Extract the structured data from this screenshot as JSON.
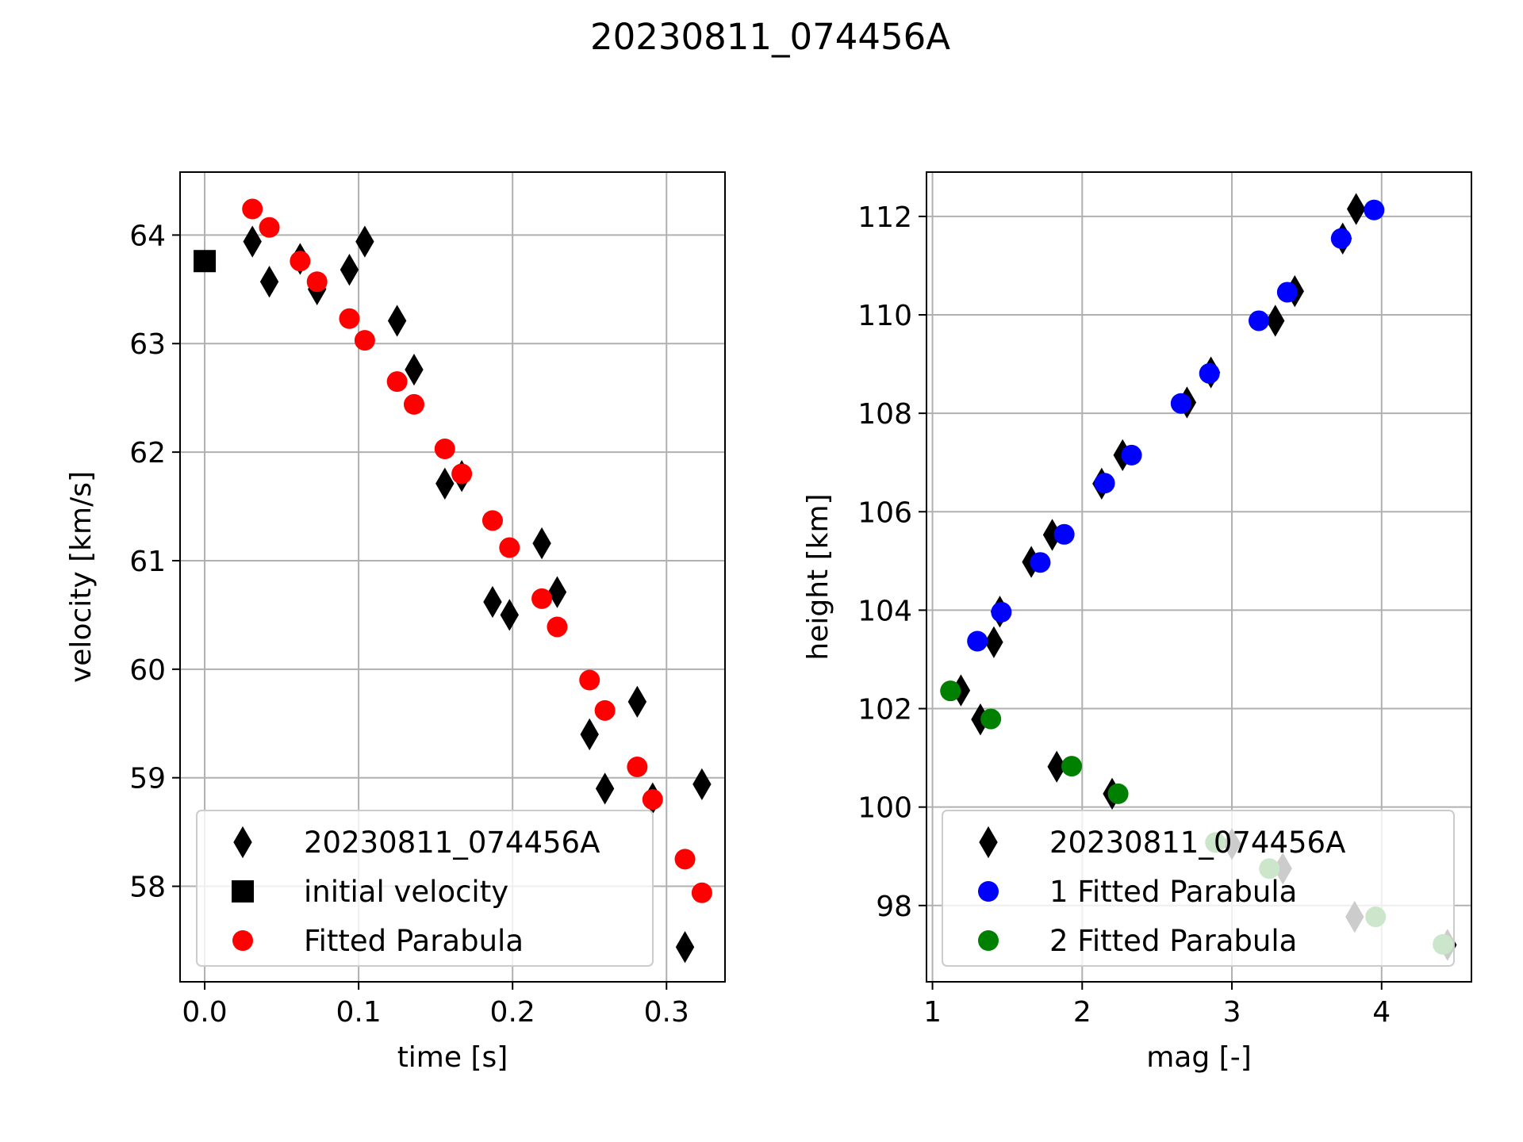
{
  "figure": {
    "title": "20230811_074456A"
  },
  "chart_data": [
    {
      "type": "scatter",
      "xlabel": "time [s]",
      "ylabel": "velocity [km/s]",
      "xlim": [
        -0.016,
        0.338
      ],
      "ylim": [
        57.12,
        64.58
      ],
      "xticks": [
        0.0,
        0.1,
        0.2,
        0.3
      ],
      "xtick_labels": [
        "0.0",
        "0.1",
        "0.2",
        "0.3"
      ],
      "yticks": [
        58,
        59,
        60,
        61,
        62,
        63,
        64
      ],
      "ytick_labels": [
        "58",
        "59",
        "60",
        "61",
        "62",
        "63",
        "64"
      ],
      "grid": true,
      "legend_position": "lower-left",
      "series": [
        {
          "name": "20230811_074456A",
          "marker": "diamond",
          "color": "#000000",
          "points": [
            [
              0.031,
              63.94
            ],
            [
              0.042,
              63.57
            ],
            [
              0.062,
              63.78
            ],
            [
              0.073,
              63.5
            ],
            [
              0.094,
              63.68
            ],
            [
              0.104,
              63.94
            ],
            [
              0.125,
              63.21
            ],
            [
              0.136,
              62.76
            ],
            [
              0.156,
              61.71
            ],
            [
              0.167,
              61.78
            ],
            [
              0.187,
              60.62
            ],
            [
              0.198,
              60.5
            ],
            [
              0.219,
              61.16
            ],
            [
              0.229,
              60.71
            ],
            [
              0.25,
              59.4
            ],
            [
              0.26,
              58.9
            ],
            [
              0.281,
              59.7
            ],
            [
              0.291,
              58.81
            ],
            [
              0.312,
              57.44
            ],
            [
              0.323,
              58.94
            ]
          ]
        },
        {
          "name": "initial velocity",
          "marker": "square",
          "color": "#000000",
          "points": [
            [
              0.0,
              63.76
            ]
          ]
        },
        {
          "name": "Fitted Parabula",
          "marker": "circle",
          "color": "#ff0000",
          "points": [
            [
              0.031,
              64.24
            ],
            [
              0.042,
              64.07
            ],
            [
              0.062,
              63.76
            ],
            [
              0.073,
              63.57
            ],
            [
              0.094,
              63.23
            ],
            [
              0.104,
              63.03
            ],
            [
              0.125,
              62.65
            ],
            [
              0.136,
              62.44
            ],
            [
              0.156,
              62.03
            ],
            [
              0.167,
              61.8
            ],
            [
              0.187,
              61.37
            ],
            [
              0.198,
              61.12
            ],
            [
              0.219,
              60.65
            ],
            [
              0.229,
              60.39
            ],
            [
              0.25,
              59.9
            ],
            [
              0.26,
              59.62
            ],
            [
              0.281,
              59.1
            ],
            [
              0.291,
              58.8
            ],
            [
              0.312,
              58.25
            ],
            [
              0.323,
              57.94
            ]
          ]
        }
      ]
    },
    {
      "type": "scatter",
      "xlabel": "mag [-]",
      "ylabel": "height [km]",
      "xlim": [
        0.96,
        4.6
      ],
      "ylim": [
        96.45,
        112.9
      ],
      "xticks": [
        1,
        2,
        3,
        4
      ],
      "xtick_labels": [
        "1",
        "2",
        "3",
        "4"
      ],
      "yticks": [
        98,
        100,
        102,
        104,
        106,
        108,
        110,
        112
      ],
      "ytick_labels": [
        "98",
        "100",
        "102",
        "104",
        "106",
        "108",
        "110",
        "112"
      ],
      "grid": true,
      "legend_position": "lower-right",
      "series": [
        {
          "name": "20230811_074456A",
          "marker": "diamond",
          "color": "#000000",
          "points": [
            [
              3.83,
              112.15
            ],
            [
              3.74,
              111.55
            ],
            [
              3.42,
              110.48
            ],
            [
              3.29,
              109.88
            ],
            [
              2.86,
              108.83
            ],
            [
              2.7,
              108.22
            ],
            [
              2.27,
              107.15
            ],
            [
              2.13,
              106.57
            ],
            [
              1.8,
              105.53
            ],
            [
              1.66,
              104.98
            ],
            [
              1.45,
              103.97
            ],
            [
              1.41,
              103.35
            ],
            [
              1.19,
              102.37
            ],
            [
              1.32,
              101.78
            ],
            [
              1.83,
              100.82
            ],
            [
              2.2,
              100.27
            ],
            [
              3.0,
              99.25
            ],
            [
              3.34,
              98.75
            ],
            [
              3.82,
              97.77
            ],
            [
              4.44,
              97.2
            ]
          ]
        },
        {
          "name": "1 Fitted Parabula",
          "marker": "circle",
          "color": "#0000ff",
          "points": [
            [
              3.95,
              112.13
            ],
            [
              3.73,
              111.55
            ],
            [
              3.37,
              110.46
            ],
            [
              3.18,
              109.88
            ],
            [
              2.85,
              108.81
            ],
            [
              2.66,
              108.2
            ],
            [
              2.33,
              107.15
            ],
            [
              2.15,
              106.58
            ],
            [
              1.88,
              105.54
            ],
            [
              1.72,
              104.97
            ],
            [
              1.46,
              103.96
            ],
            [
              1.3,
              103.37
            ]
          ]
        },
        {
          "name": "2 Fitted Parabula",
          "marker": "circle",
          "color": "#008000",
          "points": [
            [
              1.12,
              102.36
            ],
            [
              1.39,
              101.79
            ],
            [
              1.93,
              100.83
            ],
            [
              2.24,
              100.27
            ],
            [
              2.89,
              99.28
            ],
            [
              3.25,
              98.75
            ],
            [
              3.96,
              97.77
            ],
            [
              4.41,
              97.21
            ]
          ]
        }
      ]
    }
  ]
}
